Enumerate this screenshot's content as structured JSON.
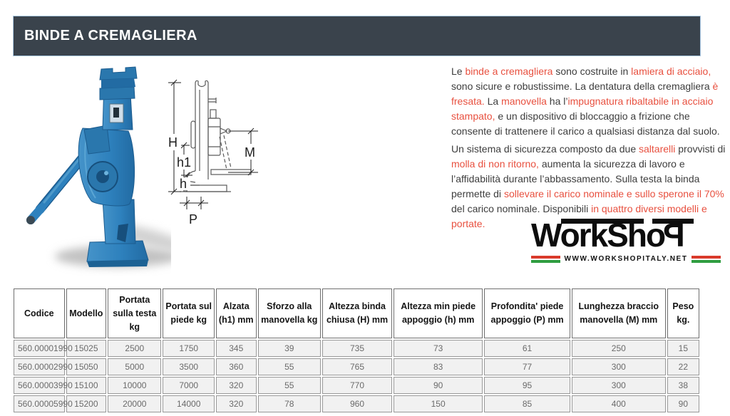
{
  "colors": {
    "accent-red": "#e8503f",
    "header-bg": "#3a434c",
    "header-border": "#a9c7e3",
    "jack-blue": "#2e81bd",
    "stripe-red": "#d93a2b",
    "stripe-green": "#2f9e41",
    "table-cell-bg": "#f1f1f1",
    "table-border": "#999999"
  },
  "header": {
    "title": "BINDE A CREMAGLIERA"
  },
  "description": {
    "paragraphs": [
      {
        "segments": [
          {
            "text": "Le ",
            "red": false
          },
          {
            "text": "binde a cremagliera",
            "red": true
          },
          {
            "text": " sono costruite in ",
            "red": false
          },
          {
            "text": "lamiera di acciaio,",
            "red": true
          },
          {
            "text": " sono sicure e robustissime. La dentatura della cremagliera ",
            "red": false
          },
          {
            "text": "è fresata.",
            "red": true
          },
          {
            "text": " La ",
            "red": false
          },
          {
            "text": "manovella",
            "red": true
          },
          {
            "text": " ha l’",
            "red": false
          },
          {
            "text": "impugnatura ribaltabile in acciaio stampato,",
            "red": true
          },
          {
            "text": " e un dispositivo di bloccaggio a frizione che consente di trattenere il carico a qualsiasi distanza dal suolo.",
            "red": false
          }
        ]
      },
      {
        "segments": [
          {
            "text": "Un sistema di sicurezza composto da due ",
            "red": false
          },
          {
            "text": "saltarelli",
            "red": true
          },
          {
            "text": " provvisti di ",
            "red": false
          },
          {
            "text": "molla di non ritorno,",
            "red": true
          },
          {
            "text": " aumenta la sicurezza di lavoro e l’affidabilità durante l’abbassamento. Sulla testa la binda permette di ",
            "red": false
          },
          {
            "text": "sollevare il carico nominale e sullo sperone il 70%",
            "red": true
          },
          {
            "text": " del carico nominale. Disponibili ",
            "red": false
          },
          {
            "text": "in quattro diversi modelli e portate.",
            "red": true
          }
        ]
      }
    ]
  },
  "figure": {
    "dim_labels": {
      "H": "H",
      "h1": "h1",
      "h": "h",
      "M": "M",
      "P": "P"
    }
  },
  "logo": {
    "word_part1": "Work",
    "word_part2": "Sho",
    "word_part3": "P",
    "website": "WWW.WORKSHOPITALY.NET"
  },
  "table": {
    "columns": [
      "Codice",
      "Modello",
      "Portata sulla testa kg",
      "Portata sul piede kg",
      "Alzata (h1) mm",
      "Sforzo alla manovella kg",
      "Altezza binda chiusa (H) mm",
      "Altezza min piede appoggio (h) mm",
      "Profondita' piede appoggio (P) mm",
      "Lunghezza braccio manovella (M) mm",
      "Peso kg."
    ],
    "rows": [
      [
        "560.00001990",
        "15025",
        "2500",
        "1750",
        "345",
        "39",
        "735",
        "73",
        "61",
        "250",
        "15"
      ],
      [
        "560.00002990",
        "15050",
        "5000",
        "3500",
        "360",
        "55",
        "765",
        "83",
        "77",
        "300",
        "22"
      ],
      [
        "560.00003990",
        "15100",
        "10000",
        "7000",
        "320",
        "55",
        "770",
        "90",
        "95",
        "300",
        "38"
      ],
      [
        "560.00005990",
        "15200",
        "20000",
        "14000",
        "320",
        "78",
        "960",
        "150",
        "85",
        "400",
        "90"
      ]
    ]
  }
}
